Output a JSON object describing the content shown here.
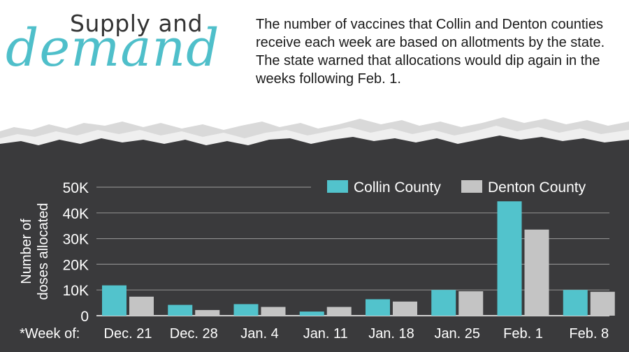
{
  "header": {
    "title_line1": "Supply and",
    "title_line2": "demand",
    "description": "The number of vaccines that Collin and Denton counties receive each week are based on allotments by the state. The state warned that allocations would dip again in the weeks following Feb. 1."
  },
  "colors": {
    "collin": "#52c3cc",
    "denton": "#c4c4c4",
    "panel": "#3a3a3c",
    "title_accent": "#4fbfca"
  },
  "chart_data": {
    "type": "bar",
    "ylabel": "Number of doses allocated",
    "xlabel": "*Week of:",
    "categories": [
      "Dec. 21",
      "Dec. 28",
      "Jan. 4",
      "Jan. 11",
      "Jan. 18",
      "Jan. 25",
      "Feb. 1",
      "Feb. 8"
    ],
    "series": [
      {
        "name": "Collin County",
        "values": [
          11800,
          4200,
          4500,
          1600,
          6400,
          10000,
          44500,
          10000
        ]
      },
      {
        "name": "Denton County",
        "values": [
          7400,
          2200,
          3400,
          3400,
          5500,
          9500,
          33500,
          9300
        ]
      }
    ],
    "ylim": [
      0,
      50000
    ],
    "yticks": [
      0,
      10000,
      20000,
      30000,
      40000,
      50000
    ],
    "ytick_labels": [
      "0",
      "10K",
      "20K",
      "30K",
      "40K",
      "50K"
    ],
    "grid": true,
    "legend": "top-right"
  }
}
